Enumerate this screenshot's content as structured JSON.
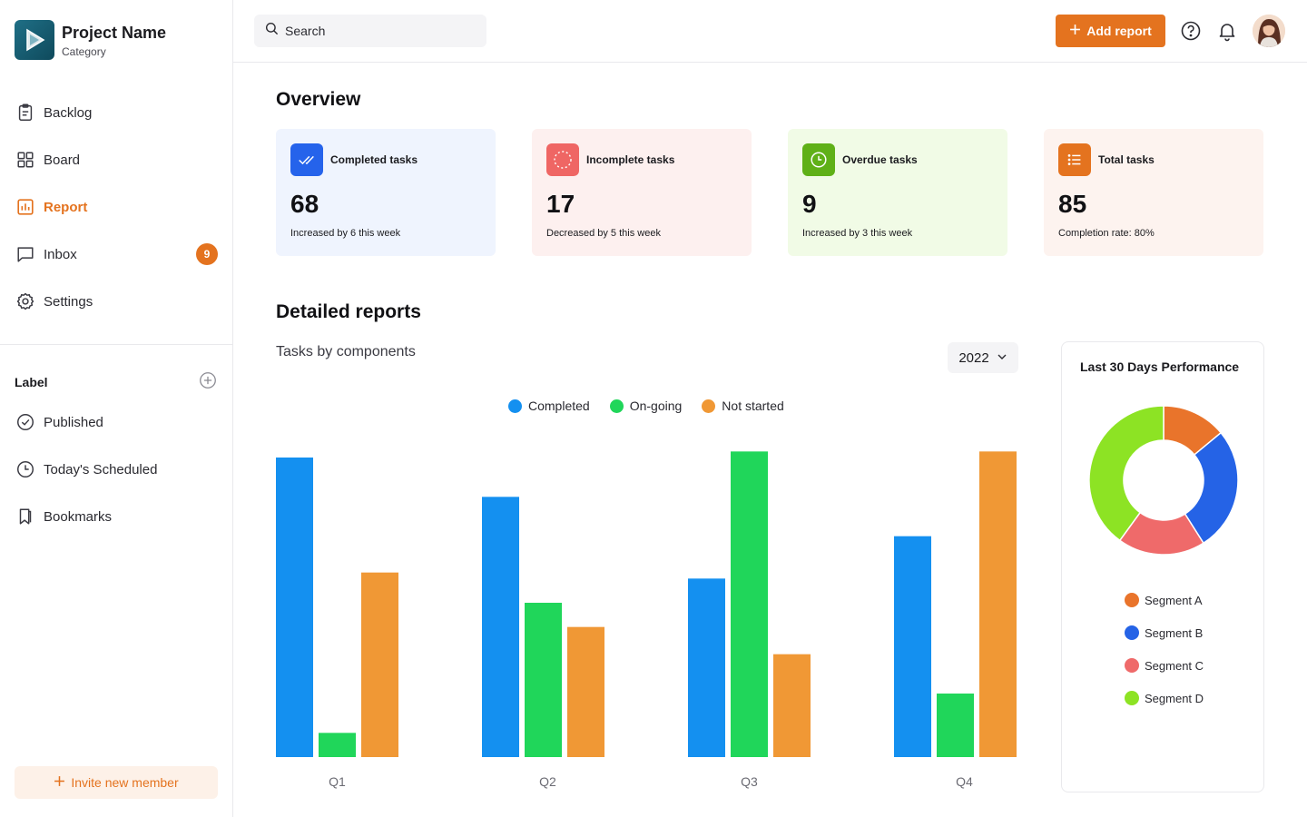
{
  "brand": {
    "title": "Project Name",
    "subtitle": "Category"
  },
  "sidebar": {
    "nav": [
      {
        "label": "Backlog",
        "icon": "clipboard-icon"
      },
      {
        "label": "Board",
        "icon": "grid-icon"
      },
      {
        "label": "Report",
        "icon": "chart-icon",
        "active": true
      },
      {
        "label": "Inbox",
        "icon": "message-icon",
        "badge": "9"
      },
      {
        "label": "Settings",
        "icon": "gear-icon"
      }
    ],
    "label_section": {
      "title": "Label"
    },
    "labels": [
      {
        "label": "Published",
        "icon": "check-circle-icon"
      },
      {
        "label": "Today's Scheduled",
        "icon": "clock-icon"
      },
      {
        "label": "Bookmarks",
        "icon": "bookmark-icon"
      }
    ],
    "invite_label": "Invite new member"
  },
  "header": {
    "search_placeholder": "Search",
    "add_report_label": "Add report"
  },
  "overview": {
    "title": "Overview",
    "cards": [
      {
        "title": "Completed tasks",
        "value": "68",
        "note": "Increased by 6 this week",
        "bg": "#eff4fe",
        "accent": "#2563eb",
        "icon": "double-check-icon"
      },
      {
        "title": "Incomplete tasks",
        "value": "17",
        "note": "Decreased by 5 this week",
        "bg": "#fdf0ef",
        "accent": "#ef6664",
        "icon": "loading-circle-icon"
      },
      {
        "title": "Overdue tasks",
        "value": "9",
        "note": "Increased by 3 this week",
        "bg": "#f1fbe6",
        "accent": "#5fb017",
        "icon": "clock-icon"
      },
      {
        "title": "Total tasks",
        "value": "85",
        "note": "Completion rate: 80%",
        "bg": "#fdf3ef",
        "accent": "#e4731f",
        "icon": "list-icon"
      }
    ]
  },
  "reports": {
    "title": "Detailed reports",
    "subtitle": "Tasks by components",
    "year": "2022"
  },
  "colors": {
    "accent": "#e4731f",
    "completed": "#1490f0",
    "ongoing": "#20d65a",
    "not_started": "#f09835"
  },
  "chart_data": [
    {
      "type": "bar",
      "categories": [
        "Q1",
        "Q2",
        "Q3",
        "Q4"
      ],
      "series": [
        {
          "name": "Completed",
          "values": [
            99,
            86,
            59,
            73
          ]
        },
        {
          "name": "On-going",
          "values": [
            8,
            51,
            101,
            21
          ]
        },
        {
          "name": "Not started",
          "values": [
            61,
            43,
            34,
            101
          ]
        }
      ],
      "ylim": [
        0,
        102
      ],
      "legend": "top-center",
      "grid": false,
      "title": "",
      "xlabel": "",
      "ylabel": ""
    },
    {
      "type": "pie",
      "donut": true,
      "title": "Last 30 Days Performance",
      "labels": [
        "Segment A",
        "Segment B",
        "Segment C",
        "Segment D"
      ],
      "values": [
        14,
        27,
        19,
        40
      ],
      "colors": [
        "#e9742b",
        "#2563e6",
        "#ef6a6a",
        "#8de324"
      ],
      "legend": "bottom"
    }
  ]
}
